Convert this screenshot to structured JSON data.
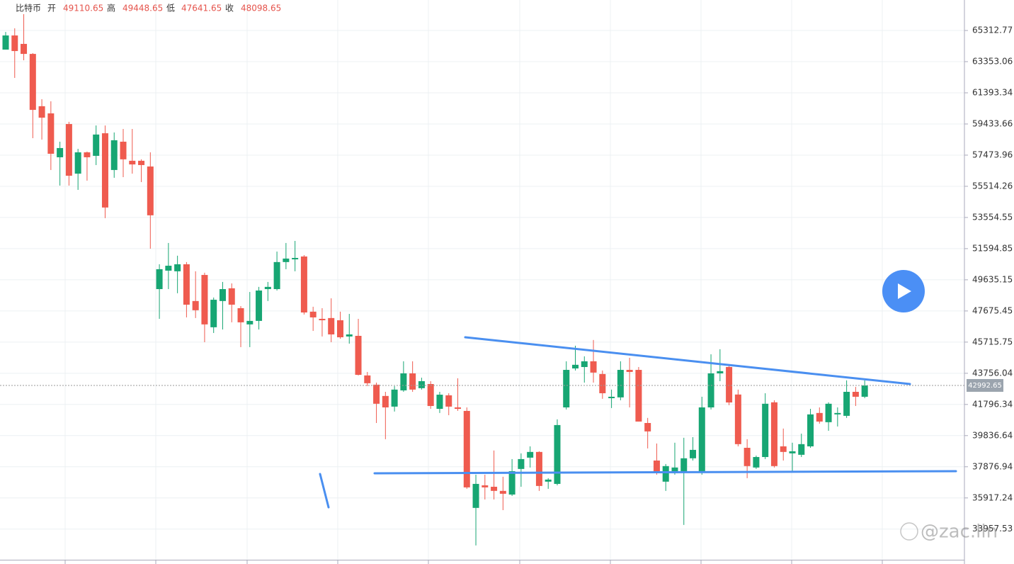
{
  "header": {
    "name": "比特币",
    "open_label": "开",
    "open": 49110.65,
    "high_label": "高",
    "high": 49448.65,
    "low_label": "低",
    "low": 47641.65,
    "close_label": "收",
    "close": 48098.65
  },
  "watermark": "@zac.lin",
  "chart_data": {
    "type": "candlestick",
    "up_color": "#17a673",
    "down_color": "#ef5b4f",
    "ylim": [
      32030,
      67230
    ],
    "yticks": [
      65312.77,
      63353.06,
      61393.34,
      59433.66,
      57473.96,
      55514.26,
      53554.55,
      51594.85,
      49635.15,
      47675.45,
      45715.75,
      43756.04,
      41796.34,
      39836.64,
      37876.94,
      35917.24,
      33957.53
    ],
    "grid": true,
    "last_price": 42992.65,
    "series": {
      "open": [
        64110,
        65000,
        64470,
        63840,
        60550,
        60100,
        57340,
        59430,
        56310,
        57650,
        57430,
        58850,
        56540,
        58320,
        57120,
        57120,
        56760,
        49050,
        50210,
        50170,
        50610,
        48300,
        49940,
        46650,
        48300,
        49100,
        47850,
        46830,
        47050,
        49050,
        49050,
        50750,
        50920,
        51100,
        47630,
        47180,
        47230,
        47090,
        46070,
        46110,
        43620,
        43040,
        42330,
        41660,
        42680,
        43750,
        42820,
        43080,
        41520,
        42370,
        41610,
        41390,
        35290,
        36710,
        36620,
        36360,
        36130,
        37740,
        38450,
        38810,
        36940,
        36800,
        41610,
        44060,
        44150,
        44510,
        43710,
        42190,
        42240,
        43970,
        43970,
        40630,
        38270,
        36940,
        37470,
        37600,
        38410,
        37510,
        41610,
        43750,
        44150,
        42420,
        39070,
        37830,
        38490,
        41930,
        39160,
        38720,
        38630,
        39160,
        41260,
        40680,
        41170,
        41080,
        42590,
        42280
      ],
      "high": [
        65220,
        65450,
        66340,
        63890,
        60990,
        60860,
        58320,
        59570,
        57870,
        57700,
        59340,
        59340,
        58900,
        59120,
        59120,
        57210,
        57650,
        50610,
        51950,
        51150,
        50750,
        50170,
        50080,
        48520,
        49500,
        49410,
        47980,
        48870,
        49190,
        49500,
        51410,
        51950,
        52080,
        51190,
        47940,
        47850,
        48470,
        47630,
        47490,
        47180,
        43840,
        43170,
        42590,
        42950,
        44510,
        44510,
        43480,
        43260,
        42590,
        42500,
        43440,
        41610,
        37380,
        37380,
        38900,
        37250,
        38360,
        38720,
        39160,
        38850,
        37160,
        40860,
        44510,
        45490,
        44820,
        45850,
        43930,
        42730,
        44510,
        44730,
        44150,
        40950,
        39340,
        38050,
        39390,
        39700,
        39740,
        42280,
        44950,
        45270,
        44290,
        42730,
        39610,
        38580,
        42500,
        42060,
        40280,
        39390,
        39960,
        41520,
        41610,
        41930,
        41610,
        43310,
        42900,
        43310
      ],
      "low": [
        64110,
        62330,
        63440,
        58540,
        58450,
        56540,
        55560,
        55560,
        55290,
        55870,
        56850,
        53510,
        56050,
        56090,
        56310,
        55780,
        51590,
        47180,
        49050,
        48790,
        47270,
        47230,
        45710,
        46290,
        46510,
        46960,
        45400,
        45400,
        46510,
        48300,
        48960,
        50300,
        50170,
        47450,
        46420,
        46070,
        45710,
        45930,
        45620,
        43620,
        42950,
        40630,
        39610,
        41350,
        42590,
        42590,
        42730,
        41520,
        41260,
        41120,
        41390,
        36490,
        32930,
        35820,
        35820,
        35150,
        36040,
        36620,
        37830,
        36360,
        36490,
        36710,
        41480,
        43930,
        43170,
        43170,
        42150,
        41570,
        42060,
        41610,
        40720,
        39030,
        37380,
        36360,
        37380,
        34220,
        38270,
        37380,
        41480,
        43260,
        41750,
        39160,
        37160,
        37740,
        38360,
        37830,
        38270,
        37600,
        38490,
        39070,
        40590,
        40140,
        40410,
        40950,
        41700,
        42190
      ],
      "close": [
        65000,
        64020,
        63840,
        60320,
        59830,
        57560,
        57920,
        56180,
        57650,
        57340,
        58770,
        54180,
        58410,
        57210,
        56890,
        56850,
        53690,
        50300,
        50520,
        50610,
        48070,
        47720,
        46830,
        48380,
        49050,
        48070,
        46960,
        47050,
        48960,
        49190,
        50750,
        50970,
        51010,
        47580,
        47270,
        47090,
        46200,
        46020,
        46200,
        43660,
        43130,
        41840,
        41610,
        42730,
        43750,
        42730,
        43260,
        41700,
        42410,
        41660,
        41520,
        36580,
        36800,
        36580,
        36360,
        36180,
        37600,
        38360,
        38810,
        36670,
        37070,
        40500,
        43970,
        44290,
        44510,
        43800,
        42500,
        42280,
        43970,
        43840,
        40720,
        40100,
        37470,
        37920,
        37830,
        38410,
        38940,
        41610,
        43750,
        43890,
        41920,
        39300,
        37920,
        38490,
        41840,
        37920,
        38810,
        38850,
        39300,
        41170,
        40720,
        41840,
        41260,
        42590,
        42280,
        42992.65
      ]
    }
  }
}
